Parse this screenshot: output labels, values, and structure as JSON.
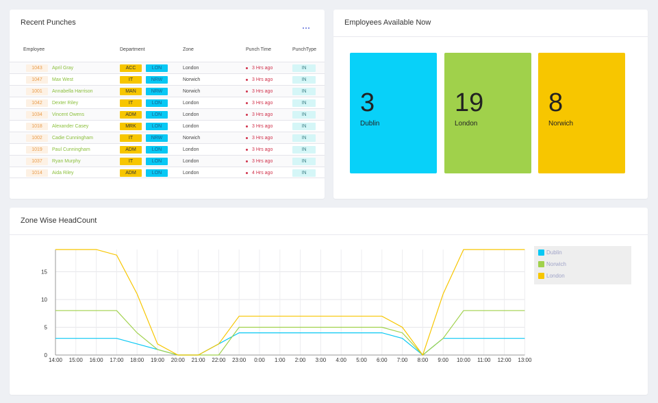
{
  "recent_punches": {
    "title": "Recent Punches",
    "columns": [
      "Employee",
      "Department",
      "Zone",
      "Punch Time",
      "PunchType"
    ],
    "rows": [
      {
        "id": "1043",
        "name": "April Gray",
        "dept": "ACC",
        "zone_code": "LON",
        "zone": "London",
        "time": "3 Hrs ago",
        "type": "IN"
      },
      {
        "id": "1047",
        "name": "Max West",
        "dept": "IT",
        "zone_code": "NRW",
        "zone": "Norwich",
        "time": "3 Hrs ago",
        "type": "IN"
      },
      {
        "id": "1001",
        "name": "Annabella Harrison",
        "dept": "MAN",
        "zone_code": "NRW",
        "zone": "Norwich",
        "time": "3 Hrs ago",
        "type": "IN"
      },
      {
        "id": "1042",
        "name": "Dexter Riley",
        "dept": "IT",
        "zone_code": "LON",
        "zone": "London",
        "time": "3 Hrs ago",
        "type": "IN"
      },
      {
        "id": "1034",
        "name": "Vincent Owens",
        "dept": "ADM",
        "zone_code": "LON",
        "zone": "London",
        "time": "3 Hrs ago",
        "type": "IN"
      },
      {
        "id": "1018",
        "name": "Alexander Casey",
        "dept": "MRK",
        "zone_code": "LON",
        "zone": "London",
        "time": "3 Hrs ago",
        "type": "IN"
      },
      {
        "id": "1002",
        "name": "Cadie Cunningham",
        "dept": "IT",
        "zone_code": "NRW",
        "zone": "Norwich",
        "time": "3 Hrs ago",
        "type": "IN"
      },
      {
        "id": "1019",
        "name": "Paul Cunningham",
        "dept": "ADM",
        "zone_code": "LON",
        "zone": "London",
        "time": "3 Hrs ago",
        "type": "IN"
      },
      {
        "id": "1037",
        "name": "Ryan Murphy",
        "dept": "IT",
        "zone_code": "LON",
        "zone": "London",
        "time": "3 Hrs ago",
        "type": "IN"
      },
      {
        "id": "1014",
        "name": "Aida Riley",
        "dept": "ADM",
        "zone_code": "LON",
        "zone": "London",
        "time": "4 Hrs ago",
        "type": "IN"
      }
    ]
  },
  "employees_available": {
    "title": "Employees Available Now",
    "tiles": [
      {
        "count": "3",
        "label": "Dublin",
        "color": "#08d1f9"
      },
      {
        "count": "19",
        "label": "London",
        "color": "#a0d14b"
      },
      {
        "count": "8",
        "label": "Norwich",
        "color": "#f7c600"
      }
    ]
  },
  "headcount": {
    "title": "Zone Wise HeadCount"
  },
  "chart_data": {
    "type": "line",
    "title": "Zone Wise HeadCount",
    "x": [
      "14:00",
      "15:00",
      "16:00",
      "17:00",
      "18:00",
      "19:00",
      "20:00",
      "21:00",
      "22:00",
      "23:00",
      "0:00",
      "1:00",
      "2:00",
      "3:00",
      "4:00",
      "5:00",
      "6:00",
      "7:00",
      "8:00",
      "9:00",
      "10:00",
      "11:00",
      "12:00",
      "13:00"
    ],
    "yticks": [
      0,
      5,
      10,
      15
    ],
    "ylim": [
      0,
      19
    ],
    "grid": true,
    "legend_position": "top-right",
    "series": [
      {
        "name": "Dublin",
        "color": "#08c8f4",
        "values": [
          3,
          3,
          3,
          3,
          2,
          1,
          0,
          0,
          2,
          4,
          4,
          4,
          4,
          4,
          4,
          4,
          4,
          3,
          0,
          3,
          3,
          3,
          3,
          3
        ]
      },
      {
        "name": "Norwich",
        "color": "#a0d14b",
        "values": [
          8,
          8,
          8,
          8,
          4,
          1,
          0,
          0,
          0,
          5,
          5,
          5,
          5,
          5,
          5,
          5,
          5,
          4,
          0,
          3,
          8,
          8,
          8,
          8
        ]
      },
      {
        "name": "London",
        "color": "#f7c600",
        "values": [
          19,
          19,
          19,
          18,
          11,
          2,
          0,
          0,
          2,
          7,
          7,
          7,
          7,
          7,
          7,
          7,
          7,
          5,
          0,
          11,
          19,
          19,
          19,
          19
        ]
      }
    ]
  }
}
